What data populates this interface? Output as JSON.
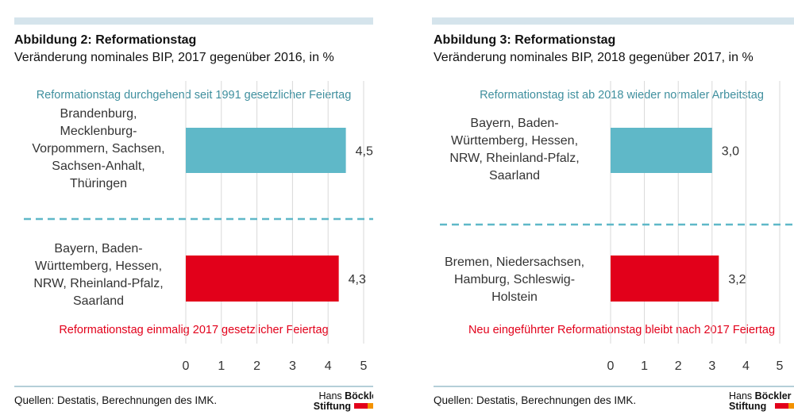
{
  "colors": {
    "accent": "#5fb8c8",
    "red": "#e2001a",
    "grid": "#d9d9d9",
    "divider": "#5fb8c8"
  },
  "figures": [
    {
      "title": "Abbildung 2: Reformationstag",
      "subtitle": "Veränderung nominales BIP, 2017 gegenüber 2016, in %",
      "note_top": "Reformationstag durchgehend seit 1991 gesetzlicher Feiertag",
      "note_bottom": "Reformationstag einmalig 2017 gesetzlicher Feiertag",
      "source": "Quellen: Destatis, Berechnungen des IMK.",
      "logo": {
        "line1a": "Hans ",
        "line1b": "Böckler",
        "line2": "Stiftung"
      }
    },
    {
      "title": "Abbildung 3: Reformationstag",
      "subtitle": "Veränderung nominales BIP, 2018 gegenüber 2017, in %",
      "note_top": "Reformationstag ist ab 2018 wieder normaler Arbeitstag",
      "note_bottom": "Neu eingeführter Reformationstag bleibt nach 2017 Feiertag",
      "source": "Quellen: Destatis, Berechnungen des IMK.",
      "logo": {
        "line1a": "Hans ",
        "line1b": "Böckler",
        "line2": "Stiftung"
      }
    }
  ],
  "chart_data": [
    {
      "type": "bar",
      "orientation": "horizontal",
      "categories": [
        [
          "Brandenburg,",
          "Mecklenburg-",
          "Vorpommern, Sachsen,",
          "Sachsen-Anhalt,",
          "Thüringen"
        ],
        [
          "Bayern, Baden-",
          "Württemberg, Hessen,",
          "NRW, Rheinland-Pfalz,",
          "Saarland"
        ]
      ],
      "values": [
        4.5,
        4.3
      ],
      "value_labels": [
        "4,5",
        "4,3"
      ],
      "bar_colors": [
        "#5fb8c8",
        "#e2001a"
      ],
      "xlim": [
        0,
        5
      ],
      "xticks": [
        0,
        1,
        2,
        3,
        4,
        5
      ],
      "grid": true
    },
    {
      "type": "bar",
      "orientation": "horizontal",
      "categories": [
        [
          "Bayern, Baden-",
          "Württemberg, Hessen,",
          "NRW, Rheinland-Pfalz,",
          "Saarland"
        ],
        [
          "Bremen, Niedersachsen,",
          "Hamburg, Schleswig-",
          "Holstein"
        ]
      ],
      "values": [
        3.0,
        3.2
      ],
      "value_labels": [
        "3,0",
        "3,2"
      ],
      "bar_colors": [
        "#5fb8c8",
        "#e2001a"
      ],
      "xlim": [
        0,
        5
      ],
      "xticks": [
        0,
        1,
        2,
        3,
        4,
        5
      ],
      "grid": true
    }
  ]
}
